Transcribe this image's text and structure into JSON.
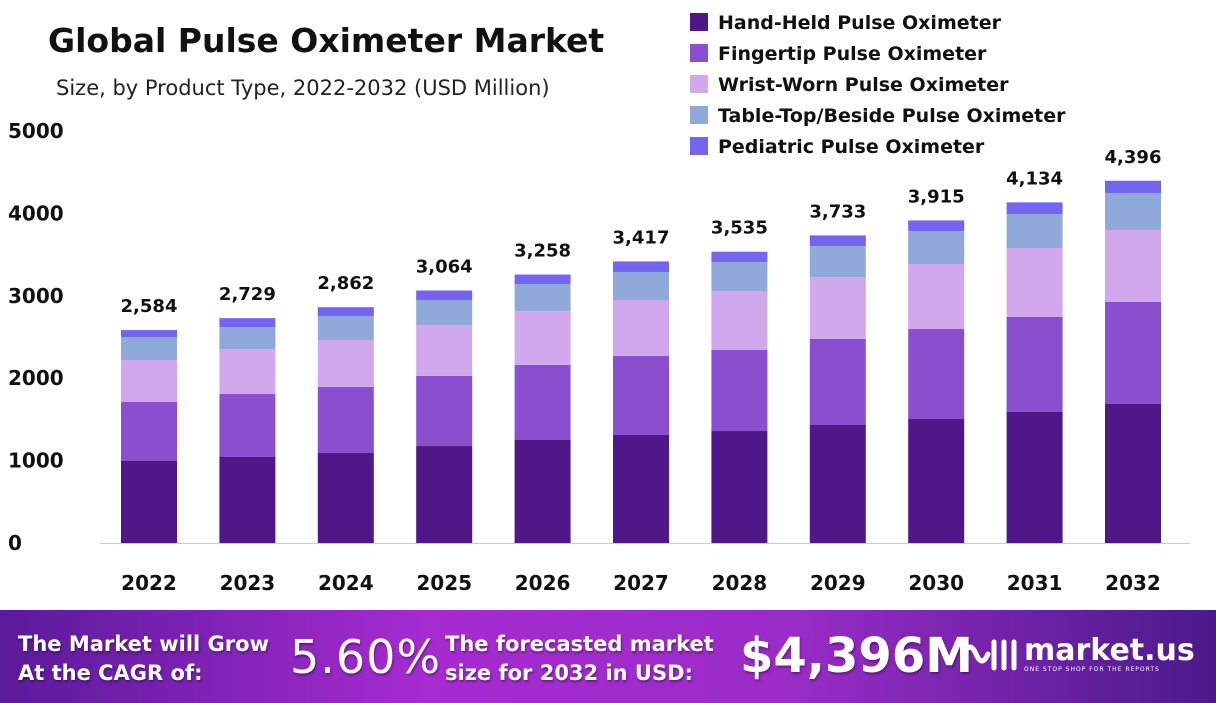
{
  "chart_data": {
    "type": "bar",
    "stacked": true,
    "title": "Global Pulse Oximeter Market",
    "subtitle": "Size, by Product Type, 2022-2032 (USD Million)",
    "xlabel": "",
    "ylabel": "",
    "ylim": [
      0,
      5000
    ],
    "yticks": [
      0,
      1000,
      2000,
      3000,
      4000,
      5000
    ],
    "grid": false,
    "legend_position": "top-right",
    "categories": [
      "2022",
      "2023",
      "2024",
      "2025",
      "2026",
      "2027",
      "2028",
      "2029",
      "2030",
      "2031",
      "2032"
    ],
    "series": [
      {
        "name": "Hand-Held Pulse Oximeter",
        "color": "#4f1787",
        "values": [
          995,
          1044,
          1092,
          1177,
          1250,
          1311,
          1359,
          1432,
          1505,
          1590,
          1687
        ]
      },
      {
        "name": "Fingertip Pulse Oximeter",
        "color": "#8a4fcf",
        "values": [
          716,
          764,
          801,
          850,
          910,
          958,
          983,
          1044,
          1092,
          1153,
          1238
        ]
      },
      {
        "name": "Wrist-Worn Pulse Oximeter",
        "color": "#d2a8ec",
        "values": [
          510,
          546,
          571,
          619,
          656,
          680,
          716,
          752,
          789,
          837,
          874
        ]
      },
      {
        "name": "Table-Top/Beside Pulse Oximeter",
        "color": "#8fa9da",
        "values": [
          279,
          267,
          291,
          303,
          327,
          340,
          352,
          376,
          400,
          413,
          449
        ]
      },
      {
        "name": "Pediatric Pulse Oximeter",
        "color": "#7464f0",
        "values": [
          84,
          108,
          107,
          115,
          115,
          128,
          125,
          129,
          129,
          141,
          148
        ]
      }
    ],
    "totals": [
      2584,
      2729,
      2862,
      3064,
      3258,
      3417,
      3535,
      3733,
      3915,
      4134,
      4396
    ],
    "total_labels": [
      "2,584",
      "2,729",
      "2,862",
      "3,064",
      "3,258",
      "3,417",
      "3,535",
      "3,733",
      "3,915",
      "4,134",
      "4,396"
    ]
  },
  "footer": {
    "cagr_text_1": "The Market will Grow",
    "cagr_text_2": "At the CAGR of:",
    "cagr_value": "5.60%",
    "forecast_text_1": "The forecasted market",
    "forecast_text_2": "size for 2032 in USD:",
    "forecast_value": "$4,396M",
    "logo_name": "market.us",
    "logo_tagline": "ONE STOP SHOP FOR THE REPORTS"
  }
}
